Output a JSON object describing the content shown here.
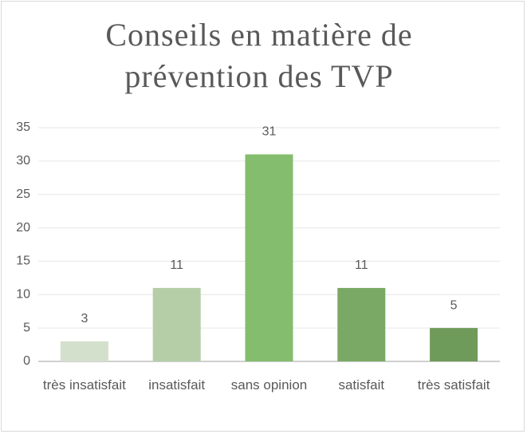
{
  "chart_data": {
    "type": "bar",
    "title": "Conseils en matière de prévention des TVP",
    "categories": [
      "très insatisfait",
      "insatisfait",
      "sans opinion",
      "satisfait",
      "très satisfait"
    ],
    "values": [
      3,
      11,
      31,
      11,
      5
    ],
    "colors": [
      "#d3e0cc",
      "#b5cea8",
      "#84bd6e",
      "#7aa965",
      "#6e9a5a"
    ],
    "ylim": [
      0,
      35
    ],
    "yticks": [
      0,
      5,
      10,
      15,
      20,
      25,
      30,
      35
    ],
    "grid": true
  }
}
